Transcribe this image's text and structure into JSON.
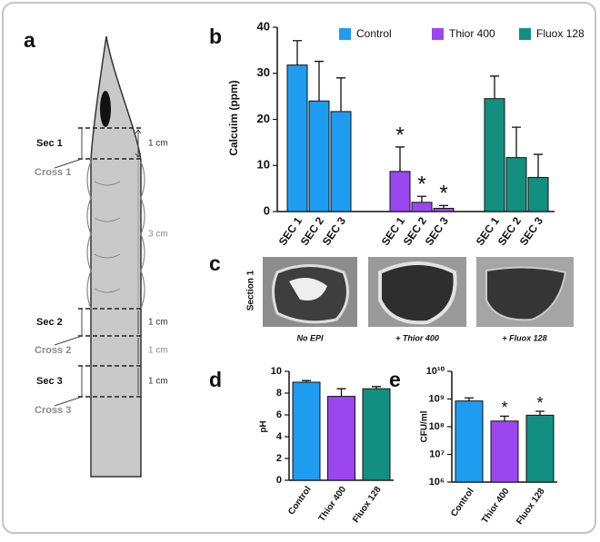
{
  "panel_labels": [
    "a",
    "b",
    "c",
    "d",
    "e"
  ],
  "diagram": {
    "sections": [
      "Sec 1",
      "Sec 2",
      "Sec 3"
    ],
    "crosses": [
      "Cross 1",
      "Cross 2",
      "Cross 3"
    ],
    "dimensions": [
      "1 cm",
      "3 cm",
      "1 cm",
      "1 cm",
      "1 cm"
    ]
  },
  "images": {
    "row_label": "Section 1",
    "captions": [
      "No EPI",
      "+ Thior 400",
      "+ Fluox 128"
    ]
  },
  "chart_data": [
    {
      "type": "bar",
      "ylabel": "Calcuim (ppm)",
      "categories": [
        "SEC 1",
        "SEC 2",
        "SEC 3"
      ],
      "series": [
        {
          "name": "Control",
          "color": "#1e9cf0",
          "values": [
            31.8,
            24,
            21.7
          ],
          "errors": [
            5.3,
            8.6,
            7.3
          ]
        },
        {
          "name": "Thior 400",
          "color": "#9b47f0",
          "values": [
            8.7,
            2,
            0.7
          ],
          "errors": [
            5.3,
            1.3,
            0.6
          ],
          "annotations": [
            "*",
            "*",
            "*"
          ]
        },
        {
          "name": "Fluox 128",
          "color": "#138f80",
          "values": [
            24.5,
            11.7,
            7.4
          ],
          "errors": [
            4.9,
            6.6,
            5.0
          ]
        }
      ],
      "ylim": [
        0,
        40
      ],
      "yticks": [
        0,
        10,
        20,
        30,
        40
      ],
      "legend": "top"
    },
    {
      "type": "bar",
      "ylabel": "pH",
      "categories": [
        "Control",
        "Thior 400",
        "Fluox 128"
      ],
      "values": [
        9.0,
        7.7,
        8.4
      ],
      "errors": [
        0.15,
        0.7,
        0.2
      ],
      "colors": [
        "#1e9cf0",
        "#9b47f0",
        "#138f80"
      ],
      "ylim": [
        0,
        10
      ],
      "yticks": [
        0,
        2,
        4,
        6,
        8,
        10
      ]
    },
    {
      "type": "bar",
      "ylabel": "CFU/ml",
      "log_scale": true,
      "categories": [
        "Control",
        "Thior 400",
        "Fluox 128"
      ],
      "values": [
        850000000,
        160000000,
        260000000
      ],
      "errors": [
        250000000,
        80000000,
        100000000
      ],
      "annotations": [
        null,
        "*",
        "*"
      ],
      "colors": [
        "#1e9cf0",
        "#9b47f0",
        "#138f80"
      ],
      "ylim": [
        1000000,
        10000000000
      ],
      "yticks": [
        {
          "value": 1000000,
          "label": "10⁶"
        },
        {
          "value": 10000000,
          "label": "10⁷"
        },
        {
          "value": 100000000,
          "label": "10⁸"
        },
        {
          "value": 1000000000,
          "label": "10⁹"
        },
        {
          "value": 10000000000,
          "label": "10¹⁰"
        }
      ]
    }
  ]
}
